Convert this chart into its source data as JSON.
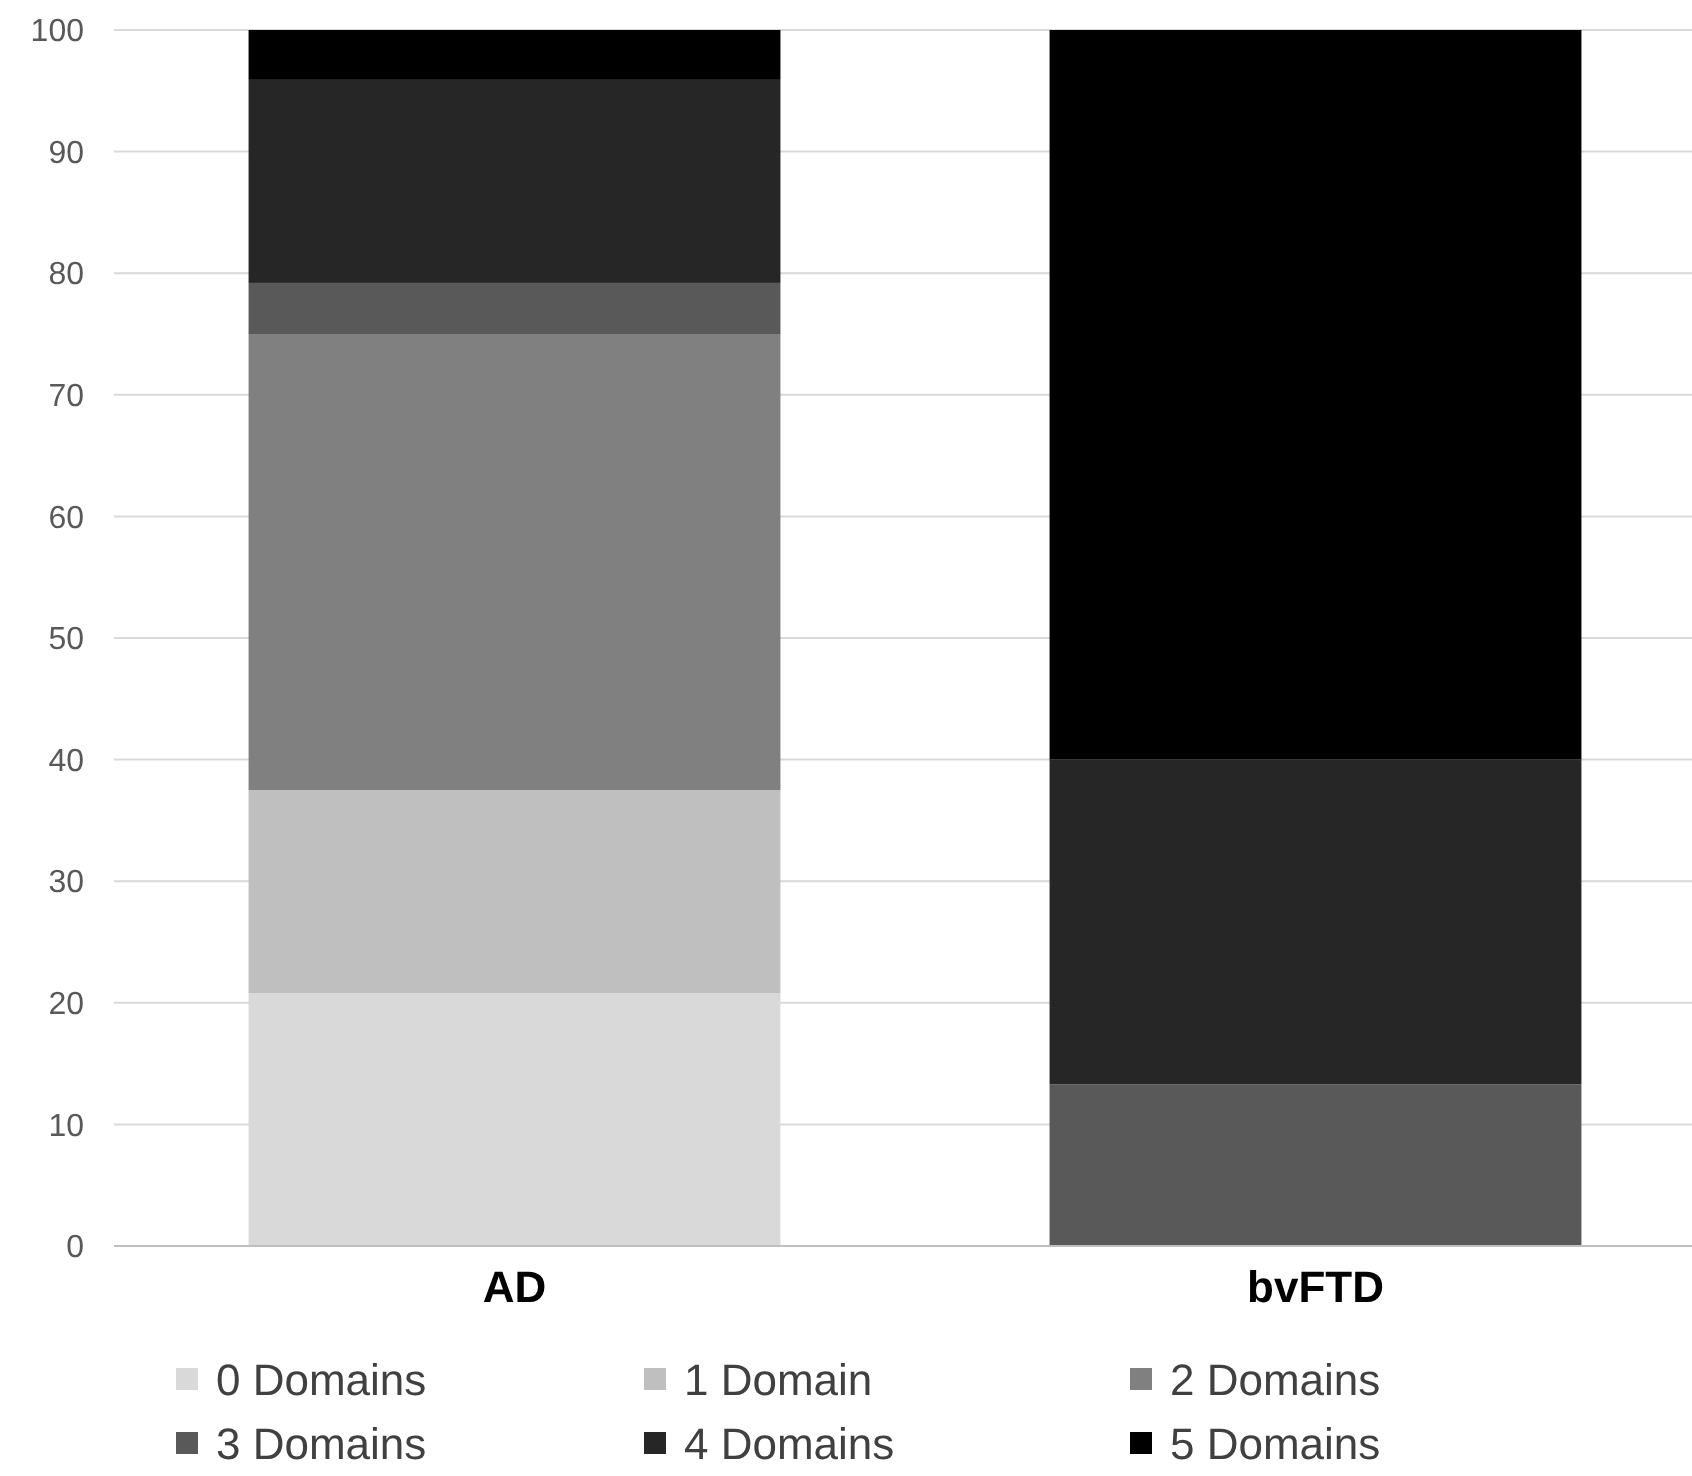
{
  "chart_data": {
    "type": "bar",
    "stacked": true,
    "categories": [
      "AD",
      "bvFTD"
    ],
    "series": [
      {
        "name": "0 Domains",
        "color": "#d9d9d9",
        "values": [
          20.8,
          0
        ]
      },
      {
        "name": "1 Domain",
        "color": "#bfbfbf",
        "values": [
          16.7,
          0
        ]
      },
      {
        "name": "2 Domains",
        "color": "#808080",
        "values": [
          37.5,
          0
        ]
      },
      {
        "name": "3 Domains",
        "color": "#595959",
        "values": [
          4.2,
          13.3
        ]
      },
      {
        "name": "4 Domains",
        "color": "#262626",
        "values": [
          16.7,
          26.7
        ]
      },
      {
        "name": "5 Domains",
        "color": "#000000",
        "values": [
          4.1,
          60
        ]
      }
    ],
    "ylim": [
      0,
      100
    ],
    "yticks": [
      0,
      10,
      20,
      30,
      40,
      50,
      60,
      70,
      80,
      90,
      100
    ],
    "grid": "y",
    "legend": "bottom"
  }
}
